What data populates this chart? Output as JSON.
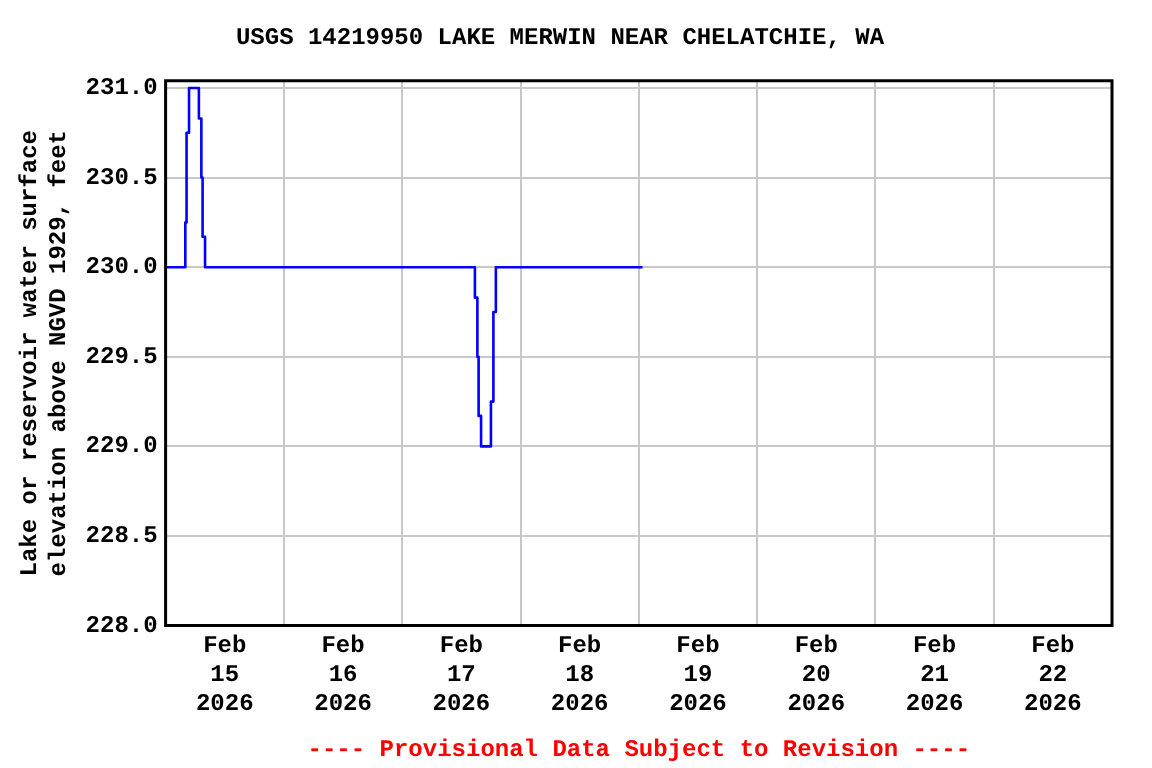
{
  "chart_data": {
    "type": "step",
    "title": "USGS 14219950 LAKE MERWIN NEAR CHELATCHIE, WA",
    "ylabel": "Lake or reservoir water surface\nelevation above NGVD 1929, feet",
    "x": [
      "2026-02-15T00:00",
      "2026-02-15T04:00",
      "2026-02-15T04:15",
      "2026-02-15T04:45",
      "2026-02-15T06:45",
      "2026-02-15T07:15",
      "2026-02-15T07:30",
      "2026-02-15T08:00",
      "2026-02-17T14:45",
      "2026-02-17T15:15",
      "2026-02-17T15:30",
      "2026-02-17T16:00",
      "2026-02-17T18:00",
      "2026-02-17T18:30",
      "2026-02-17T19:00",
      "2026-02-19T00:45"
    ],
    "series": [
      {
        "color": "#0000ff",
        "values": [
          230.0,
          230.25,
          230.75,
          231.0,
          230.83,
          230.5,
          230.17,
          230.0,
          229.83,
          229.5,
          229.17,
          229.0,
          229.25,
          229.75,
          230.0,
          230.0
        ]
      }
    ],
    "xlim": [
      "2026-02-15T00:00",
      "2026-02-23T00:00"
    ],
    "xticks": [
      {
        "value": "2026-02-15T12:00",
        "label": "Feb\n15\n2026"
      },
      {
        "value": "2026-02-16T00:00",
        "label": null
      },
      {
        "value": "2026-02-16T12:00",
        "label": "Feb\n16\n2026"
      },
      {
        "value": "2026-02-17T00:00",
        "label": null
      },
      {
        "value": "2026-02-17T12:00",
        "label": "Feb\n17\n2026"
      },
      {
        "value": "2026-02-18T00:00",
        "label": null
      },
      {
        "value": "2026-02-18T12:00",
        "label": "Feb\n18\n2026"
      },
      {
        "value": "2026-02-19T00:00",
        "label": null
      },
      {
        "value": "2026-02-19T12:00",
        "label": "Feb\n19\n2026"
      },
      {
        "value": "2026-02-20T00:00",
        "label": null
      },
      {
        "value": "2026-02-20T12:00",
        "label": "Feb\n20\n2026"
      },
      {
        "value": "2026-02-21T00:00",
        "label": null
      },
      {
        "value": "2026-02-21T12:00",
        "label": "Feb\n21\n2026"
      },
      {
        "value": "2026-02-22T00:00",
        "label": null
      },
      {
        "value": "2026-02-22T12:00",
        "label": "Feb\n22\n2026"
      }
    ],
    "ylim": [
      228,
      231.04
    ],
    "yticks": [
      {
        "value": 228,
        "label": "228.0"
      },
      {
        "value": 228.5,
        "label": "228.5"
      },
      {
        "value": 229,
        "label": "229.0"
      },
      {
        "value": 229.5,
        "label": "229.5"
      },
      {
        "value": 230,
        "label": "230.0"
      },
      {
        "value": 230.5,
        "label": "230.5"
      },
      {
        "value": 231,
        "label": "231.0"
      }
    ],
    "grid": true,
    "annotations": [
      "---- Provisional Data Subject to Revision ----"
    ]
  }
}
